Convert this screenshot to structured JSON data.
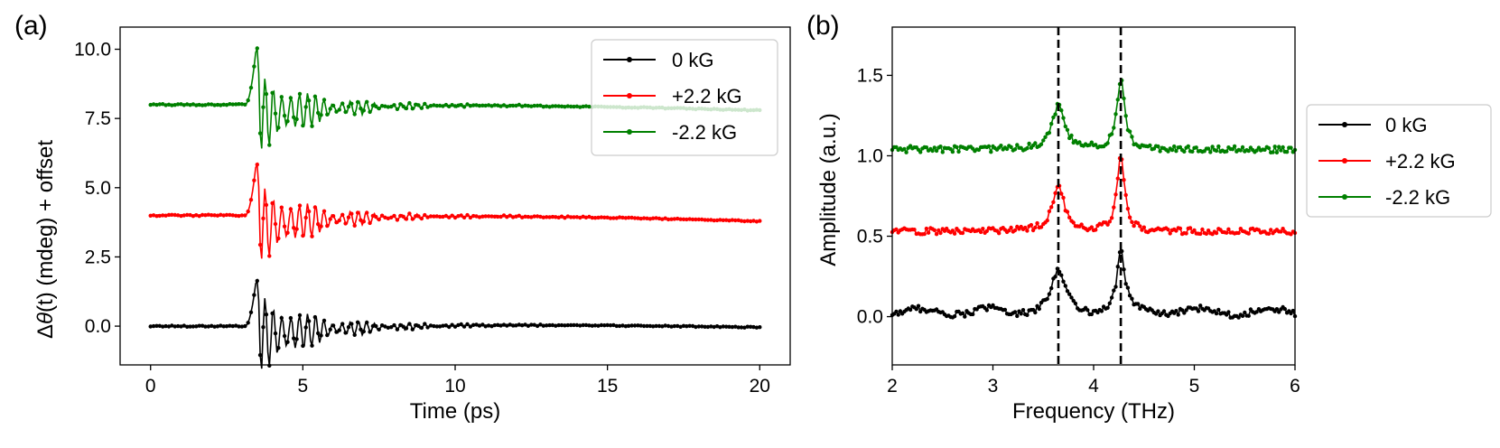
{
  "chart_data": [
    {
      "id": "a",
      "panel_label": "(a)",
      "type": "line",
      "xlabel": "Time (ps)",
      "ylabel_prefix": "Δ",
      "ylabel_theta": "θ",
      "ylabel_t": "(t)",
      "ylabel_suffix": " (mdeg) + offset",
      "xlim": [
        -1.0,
        21.0
      ],
      "ylim": [
        -1.4,
        10.8
      ],
      "xticks": [
        0,
        5,
        10,
        15,
        20
      ],
      "xtick_labels": [
        "0",
        "5",
        "10",
        "15",
        "20"
      ],
      "yticks": [
        0.0,
        2.5,
        5.0,
        7.5,
        10.0
      ],
      "ytick_labels": [
        "0.0",
        "2.5",
        "5.0",
        "7.5",
        "10.0"
      ],
      "legend_position": "top-right",
      "series": [
        {
          "name": "0 kG",
          "color": "#000000",
          "offset": 0.0,
          "peak": 2.0,
          "x": [
            0,
            1,
            2,
            3,
            3.3,
            3.5,
            3.7,
            4.0,
            4.5,
            5.0,
            6.0,
            7.0,
            8.0,
            10.0,
            12.0,
            15.0,
            20.0
          ],
          "y": [
            0.0,
            0.0,
            0.0,
            0.05,
            0.4,
            2.0,
            0.5,
            -0.8,
            -0.5,
            -0.4,
            -0.3,
            -0.2,
            -0.1,
            0.05,
            0.1,
            0.05,
            -0.05
          ]
        },
        {
          "name": "+2.2 kG",
          "color": "#ff0000",
          "offset": 4.0,
          "peak": 6.25,
          "x": [
            0,
            1,
            2,
            3,
            3.3,
            3.5,
            3.7,
            4.0,
            4.5,
            5.0,
            6.0,
            7.0,
            8.0,
            10.0,
            12.0,
            15.0,
            20.0
          ],
          "y": [
            4.0,
            4.0,
            4.0,
            4.05,
            4.4,
            6.25,
            4.5,
            2.6,
            3.0,
            3.2,
            3.4,
            3.6,
            3.7,
            3.8,
            3.85,
            3.8,
            3.6
          ]
        },
        {
          "name": "-2.2 kG",
          "color": "#008000",
          "offset": 8.0,
          "peak": 10.45,
          "x": [
            0,
            1,
            2,
            3,
            3.3,
            3.5,
            3.7,
            4.0,
            4.5,
            5.0,
            6.0,
            7.0,
            8.0,
            10.0,
            12.0,
            15.0,
            20.0
          ],
          "y": [
            7.95,
            7.95,
            7.95,
            8.0,
            8.4,
            10.45,
            8.5,
            6.8,
            7.0,
            7.2,
            7.4,
            7.6,
            7.7,
            7.8,
            7.85,
            7.85,
            7.65
          ]
        }
      ]
    },
    {
      "id": "b",
      "panel_label": "(b)",
      "type": "line",
      "xlabel": "Frequency (THz)",
      "ylabel": "Amplitude (a.u.)",
      "xlim": [
        2.0,
        6.0
      ],
      "ylim": [
        -0.3,
        1.8
      ],
      "xticks": [
        2,
        3,
        4,
        5,
        6
      ],
      "xtick_labels": [
        "2",
        "3",
        "4",
        "5",
        "6"
      ],
      "yticks": [
        0.0,
        0.5,
        1.0,
        1.5
      ],
      "ytick_labels": [
        "0.0",
        "0.5",
        "1.0",
        "1.5"
      ],
      "vlines": [
        3.65,
        4.27
      ],
      "legend_position": "right-outside",
      "series": [
        {
          "name": "0 kG",
          "color": "#000000",
          "base": 0.03,
          "peaks": [
            {
              "x": 3.65,
              "y": 0.28
            },
            {
              "x": 4.27,
              "y": 0.4
            }
          ]
        },
        {
          "name": "+2.2 kG",
          "color": "#ff0000",
          "base": 0.53,
          "peaks": [
            {
              "x": 3.65,
              "y": 0.8
            },
            {
              "x": 4.27,
              "y": 0.99
            }
          ]
        },
        {
          "name": "-2.2 kG",
          "color": "#008000",
          "base": 1.04,
          "peaks": [
            {
              "x": 3.65,
              "y": 1.31
            },
            {
              "x": 4.27,
              "y": 1.48
            }
          ]
        }
      ]
    }
  ]
}
